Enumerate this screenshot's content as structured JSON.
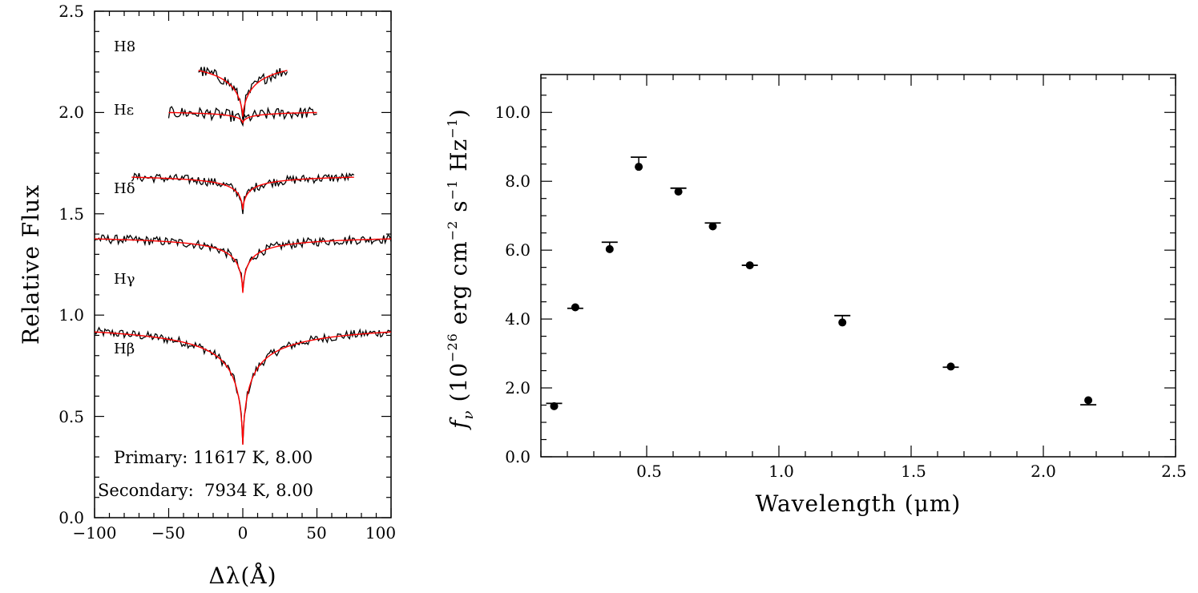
{
  "chart_data": [
    {
      "type": "line",
      "title": "",
      "xlabel": "Δλ(Å)",
      "ylabel": "Relative Flux",
      "xlim": [
        -100,
        100
      ],
      "ylim": [
        0,
        2.5
      ],
      "x_ticks": [
        "−100",
        "−50",
        "0",
        "50",
        "100"
      ],
      "x_tick_values": [
        -100,
        -50,
        0,
        50,
        100
      ],
      "y_ticks": [
        "0.0",
        "0.5",
        "1.0",
        "1.5",
        "2.0",
        "2.5"
      ],
      "y_tick_values": [
        0,
        0.5,
        1.0,
        1.5,
        2.0,
        2.5
      ],
      "series": [
        {
          "name": "Hβ",
          "label": "Hβ",
          "range": [
            -100,
            100
          ],
          "continuum": 0.98,
          "core": 0.36,
          "width": 5.5
        },
        {
          "name": "Hγ",
          "label": "Hγ",
          "range": [
            -100,
            100
          ],
          "continuum": 1.4,
          "core": 1.11,
          "width": 4.0
        },
        {
          "name": "Hδ",
          "label": "Hδ",
          "range": [
            -75,
            75
          ],
          "continuum": 1.7,
          "core": 1.52,
          "width": 4.5
        },
        {
          "name": "Hε",
          "label": "Hε",
          "range": [
            -50,
            50
          ],
          "continuum": 2.01,
          "core": 1.95,
          "width": 6.0
        },
        {
          "name": "H8",
          "label": "H8",
          "range": [
            -30,
            30
          ],
          "continuum": 2.3,
          "core": 1.98,
          "width": 9.0
        }
      ],
      "observed_color": "#000000",
      "model_color": "#ff0000",
      "annotations": [
        "Primary: 11617 K, 8.00",
        "Secondary:  7934 K, 8.00"
      ]
    },
    {
      "type": "scatter",
      "title": "",
      "xlabel": "Wavelength (μm)",
      "ylabel_prefix": "f",
      "ylabel_sub": "ν",
      "ylabel_body": "(10",
      "ylabel_exp1": "−26",
      "ylabel_mid1": " erg cm",
      "ylabel_exp2": "−2",
      "ylabel_mid2": " s",
      "ylabel_exp3": "−1",
      "ylabel_mid3": " Hz",
      "ylabel_exp4": "−1",
      "ylabel_end": ")",
      "xlim": [
        0.1,
        2.5
      ],
      "ylim": [
        0,
        11.1
      ],
      "x_ticks": [
        "0.5",
        "1.0",
        "1.5",
        "2.0",
        "2.5"
      ],
      "x_tick_values": [
        0.5,
        1.0,
        1.5,
        2.0,
        2.5
      ],
      "y_ticks": [
        "0.0",
        "2.0",
        "4.0",
        "6.0",
        "8.0",
        "10.0"
      ],
      "y_tick_values": [
        0,
        2,
        4,
        6,
        8,
        10
      ],
      "points": [
        {
          "x": 0.15,
          "y": 1.47,
          "model": 1.55
        },
        {
          "x": 0.23,
          "y": 4.34,
          "model": 4.31
        },
        {
          "x": 0.36,
          "y": 6.03,
          "model": 6.23
        },
        {
          "x": 0.47,
          "y": 8.42,
          "model": 8.7
        },
        {
          "x": 0.62,
          "y": 7.7,
          "model": 7.8
        },
        {
          "x": 0.75,
          "y": 6.69,
          "model": 6.79
        },
        {
          "x": 0.89,
          "y": 5.56,
          "model": 5.56
        },
        {
          "x": 1.24,
          "y": 3.9,
          "model": 4.1
        },
        {
          "x": 1.65,
          "y": 2.62,
          "model": 2.6
        },
        {
          "x": 2.17,
          "y": 1.64,
          "model": 1.51
        }
      ]
    }
  ]
}
